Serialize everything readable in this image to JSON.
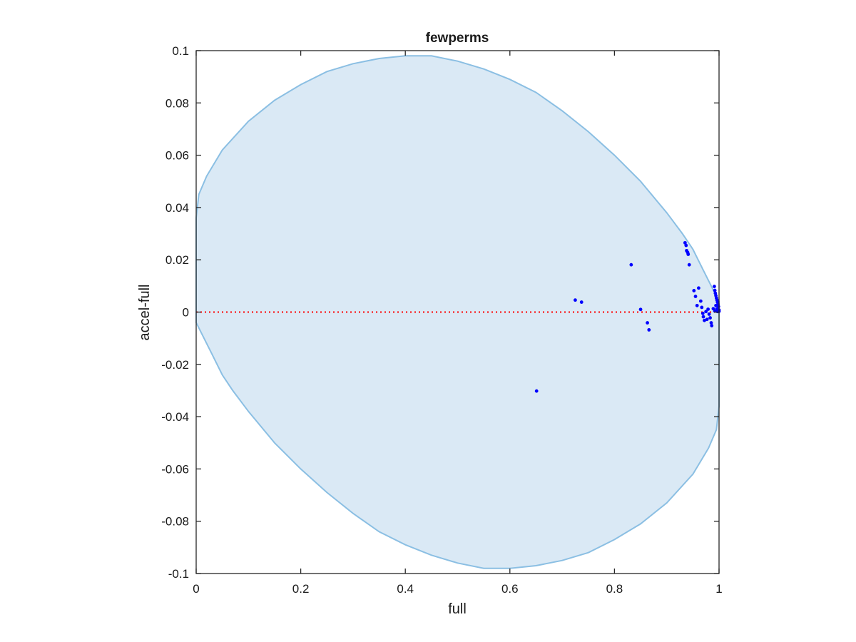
{
  "chart_data": {
    "type": "scatter",
    "title": "fewperms",
    "xlabel": "full",
    "ylabel": "accel-full",
    "xlim": [
      0,
      1
    ],
    "ylim": [
      -0.1,
      0.1
    ],
    "xticks": [
      0,
      0.2,
      0.4,
      0.6,
      0.8,
      1
    ],
    "xtick_labels": [
      "0",
      "0.2",
      "0.4",
      "0.6",
      "0.8",
      "1"
    ],
    "yticks": [
      -0.1,
      -0.08,
      -0.06,
      -0.04,
      -0.02,
      0,
      0.02,
      0.04,
      0.06,
      0.08,
      0.1
    ],
    "ytick_labels": [
      "-0.1",
      "-0.08",
      "-0.06",
      "-0.04",
      "-0.02",
      "0",
      "0.02",
      "0.04",
      "0.06",
      "0.08",
      "0.1"
    ],
    "grid": false,
    "reference_line": {
      "y": 0,
      "style": "dotted",
      "color": "#ff0000"
    },
    "region": {
      "shape": "ellipse",
      "fill": "#dae9f5",
      "stroke": "#8bbfe3",
      "boundary": [
        [
          0.0,
          0.036
        ],
        [
          0.005,
          0.045
        ],
        [
          0.02,
          0.052
        ],
        [
          0.05,
          0.062
        ],
        [
          0.1,
          0.073
        ],
        [
          0.15,
          0.081
        ],
        [
          0.2,
          0.087
        ],
        [
          0.25,
          0.092
        ],
        [
          0.3,
          0.095
        ],
        [
          0.35,
          0.097
        ],
        [
          0.4,
          0.098
        ],
        [
          0.45,
          0.098
        ],
        [
          0.5,
          0.096
        ],
        [
          0.55,
          0.093
        ],
        [
          0.6,
          0.089
        ],
        [
          0.65,
          0.084
        ],
        [
          0.7,
          0.077
        ],
        [
          0.75,
          0.069
        ],
        [
          0.8,
          0.06
        ],
        [
          0.85,
          0.05
        ],
        [
          0.9,
          0.038
        ],
        [
          0.93,
          0.03
        ],
        [
          0.95,
          0.024
        ],
        [
          0.97,
          0.016
        ],
        [
          0.99,
          0.008
        ],
        [
          1.0,
          0.004
        ],
        [
          1.0,
          -0.036
        ],
        [
          0.995,
          -0.045
        ],
        [
          0.98,
          -0.052
        ],
        [
          0.95,
          -0.062
        ],
        [
          0.9,
          -0.073
        ],
        [
          0.85,
          -0.081
        ],
        [
          0.8,
          -0.087
        ],
        [
          0.75,
          -0.092
        ],
        [
          0.7,
          -0.095
        ],
        [
          0.65,
          -0.097
        ],
        [
          0.6,
          -0.098
        ],
        [
          0.55,
          -0.098
        ],
        [
          0.5,
          -0.096
        ],
        [
          0.45,
          -0.093
        ],
        [
          0.4,
          -0.089
        ],
        [
          0.35,
          -0.084
        ],
        [
          0.3,
          -0.077
        ],
        [
          0.25,
          -0.069
        ],
        [
          0.2,
          -0.06
        ],
        [
          0.15,
          -0.05
        ],
        [
          0.1,
          -0.038
        ],
        [
          0.07,
          -0.03
        ],
        [
          0.05,
          -0.024
        ],
        [
          0.03,
          -0.016
        ],
        [
          0.01,
          -0.008
        ],
        [
          0.0,
          -0.004
        ]
      ]
    },
    "series": [
      {
        "color": "#0000ff",
        "points": [
          [
            0.651,
            -0.0302
          ],
          [
            0.725,
            0.0046
          ],
          [
            0.737,
            0.0038
          ],
          [
            0.832,
            0.0181
          ],
          [
            0.85,
            0.001
          ],
          [
            0.863,
            -0.0041
          ],
          [
            0.866,
            -0.0068
          ],
          [
            0.935,
            0.0265
          ],
          [
            0.937,
            0.0255
          ],
          [
            0.938,
            0.0235
          ],
          [
            0.94,
            0.0228
          ],
          [
            0.941,
            0.0221
          ],
          [
            0.943,
            0.0181
          ],
          [
            0.952,
            0.0082
          ],
          [
            0.955,
            0.006
          ],
          [
            0.958,
            0.0025
          ],
          [
            0.961,
            0.0092
          ],
          [
            0.965,
            0.0042
          ],
          [
            0.967,
            0.0018
          ],
          [
            0.969,
            -0.0005
          ],
          [
            0.97,
            -0.0018
          ],
          [
            0.972,
            -0.0032
          ],
          [
            0.975,
            0.0002
          ],
          [
            0.977,
            -0.0028
          ],
          [
            0.979,
            0.0011
          ],
          [
            0.981,
            -0.0008
          ],
          [
            0.983,
            -0.0022
          ],
          [
            0.985,
            -0.0041
          ],
          [
            0.986,
            -0.0052
          ],
          [
            0.989,
            0.0013
          ],
          [
            0.991,
            0.0098
          ],
          [
            0.992,
            0.0083
          ],
          [
            0.993,
            0.0072
          ],
          [
            0.994,
            0.0063
          ],
          [
            0.995,
            0.0054
          ],
          [
            0.996,
            0.0046
          ],
          [
            0.997,
            0.0038
          ],
          [
            0.998,
            0.003
          ],
          [
            0.999,
            0.0021
          ],
          [
            1.0,
            0.0008
          ],
          [
            1.0,
            0.0003
          ],
          [
            0.996,
            0.0012
          ],
          [
            0.997,
            0.0002
          ],
          [
            0.994,
            0.0025
          ],
          [
            0.992,
            0.0004
          ]
        ]
      }
    ]
  }
}
